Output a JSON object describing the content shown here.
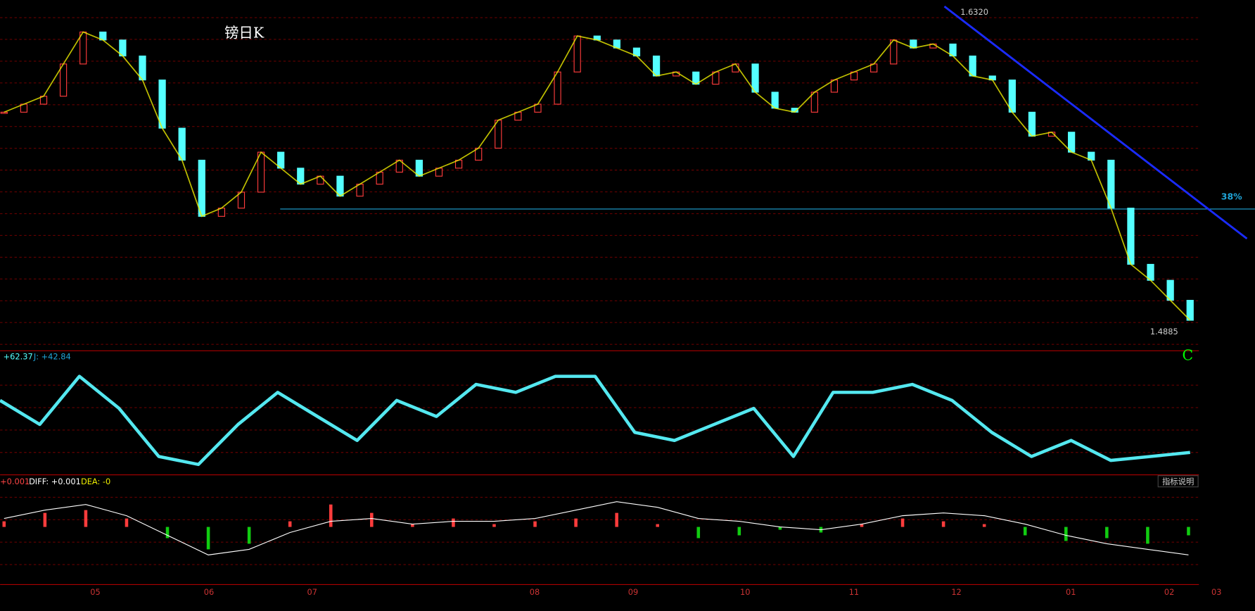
{
  "header": {
    "title": "镑日K",
    "wave_label": "C"
  },
  "price_panel": {
    "high_label": "1.6320",
    "low_label": "1.4885",
    "fib_label": "38%",
    "ylim": [
      1.4885,
      1.632
    ],
    "closes": [
      1.5869,
      1.5905,
      1.5941,
      1.6086,
      1.623,
      1.6194,
      1.6122,
      1.6014,
      1.5797,
      1.5653,
      1.54,
      1.5437,
      1.5509,
      1.5689,
      1.5617,
      1.5545,
      1.5581,
      1.5491,
      1.5545,
      1.5599,
      1.5653,
      1.5581,
      1.5617,
      1.5653,
      1.5707,
      1.5833,
      1.5869,
      1.5905,
      1.605,
      1.6212,
      1.6194,
      1.6158,
      1.6122,
      1.6032,
      1.605,
      1.5995,
      1.605,
      1.6086,
      1.5959,
      1.5887,
      1.5869,
      1.5959,
      1.6014,
      1.605,
      1.6086,
      1.6194,
      1.6158,
      1.6176,
      1.6122,
      1.6032,
      1.6014,
      1.5869,
      1.5761,
      1.5779,
      1.5689,
      1.5653,
      1.5437,
      1.5184,
      1.5112,
      1.5022,
      1.4932
    ]
  },
  "kdj_panel": {
    "k_text": "+62.37",
    "j_text": "J: +42.84",
    "ylim": [
      0,
      100
    ],
    "k": [
      66.4,
      45,
      87.9,
      59.3,
      16.4,
      9.3,
      45,
      73.6,
      52.1,
      30.7,
      66.4,
      52.1,
      80.7,
      73.6,
      87.9,
      87.9,
      37.9,
      30.7,
      45,
      59.3,
      16.4,
      73.6,
      73.6,
      80.7,
      66.4,
      37.9,
      16.4,
      30.7,
      12.9,
      16.4,
      20
    ]
  },
  "macd_panel": {
    "macd_text": "+0.001",
    "diff_text": "DIFF: +0.001",
    "dea_text": "DEA: -0",
    "button": "指标说明",
    "ylim": [
      -1,
      1
    ],
    "hist": [
      0.2,
      0.5,
      0.6,
      0.3,
      -0.4,
      -0.8,
      -0.6,
      0.2,
      0.8,
      0.5,
      0.1,
      0.3,
      0.1,
      0.2,
      0.3,
      0.5,
      0.1,
      -0.4,
      -0.3,
      -0.1,
      -0.2,
      0.1,
      0.3,
      0.2,
      0.1,
      -0.3,
      -0.5,
      -0.4,
      -0.6,
      -0.3
    ],
    "diff": [
      0.3,
      0.6,
      0.8,
      0.4,
      -0.3,
      -1.0,
      -0.8,
      -0.2,
      0.2,
      0.3,
      0.1,
      0.2,
      0.2,
      0.3,
      0.6,
      0.9,
      0.7,
      0.3,
      0.2,
      0.0,
      -0.1,
      0.1,
      0.4,
      0.5,
      0.4,
      0.1,
      -0.3,
      -0.6,
      -0.8,
      -1.0
    ]
  },
  "date_axis": [
    "05",
    "06",
    "07",
    "08",
    "09",
    "10",
    "11",
    "12",
    "01",
    "02",
    "03"
  ]
}
